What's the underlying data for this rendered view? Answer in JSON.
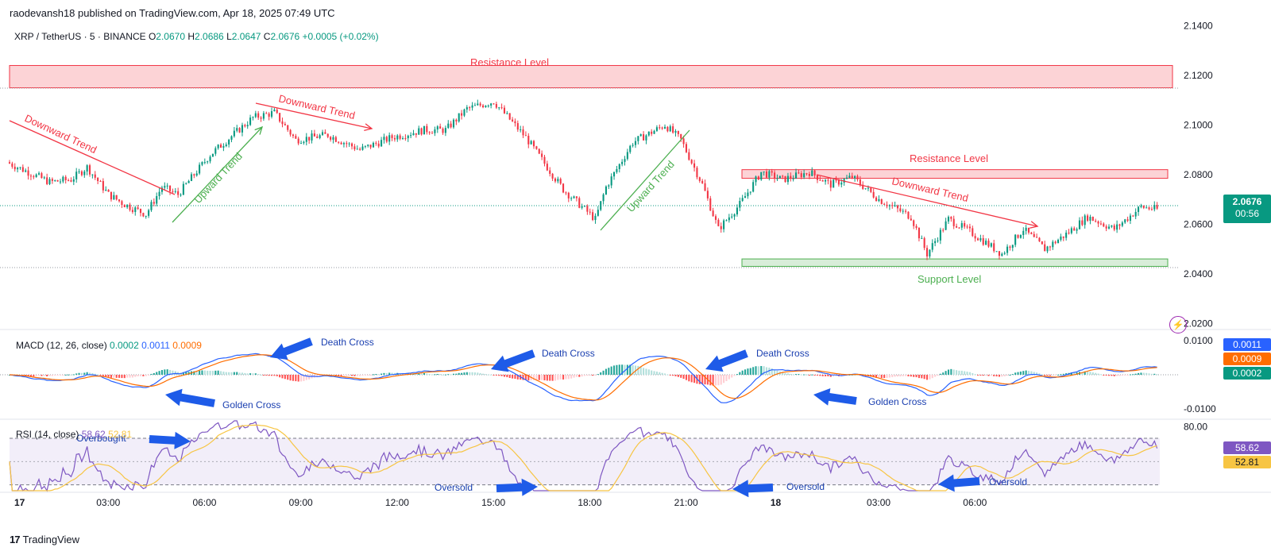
{
  "publisher": "raodevansh18 published on TradingView.com, Apr 18, 2025 07:49 UTC",
  "symbol": {
    "name": "XRP / TetherUS · 5 · BINANCE",
    "o_label": "O",
    "o": "2.0670",
    "h_label": "H",
    "h": "2.0686",
    "l_label": "L",
    "l": "2.0647",
    "c_label": "C",
    "c": "2.0676",
    "change": "+0.0005 (+0.02%)"
  },
  "last_price": {
    "value": "2.0676",
    "countdown": "00:56"
  },
  "annotations": {
    "resistance_top": "Resistance Level",
    "resistance_right": "Resistance Level",
    "support": "Support Level",
    "downward_trend": "Downward Trend",
    "upward_trend": "Upward Trend",
    "death_cross": "Death Cross",
    "golden_cross": "Golden Cross",
    "overbought": "Overbought",
    "oversold": "Oversold"
  },
  "macd": {
    "label": "MACD (12, 26, close)",
    "v1": "0.0002",
    "v2": "0.0011",
    "v3": "0.0009",
    "badge_macd": "0.0011",
    "badge_signal": "0.0009",
    "badge_hist": "0.0002"
  },
  "rsi": {
    "label": "RSI (14, close)",
    "v1": "58.62",
    "v2": "52.81",
    "badge_rsi": "58.62",
    "badge_ma": "52.81"
  },
  "logo": {
    "text": "TradingView",
    "mark": "17"
  },
  "colors": {
    "up": "#089981",
    "down": "#f23645",
    "macd": "#2962ff",
    "signal": "#ff6d00",
    "rsi": "#7e57c2",
    "rsi_ma": "#f7c543",
    "support": "#4caf50",
    "resistance": "#f23645",
    "arrow": "#1e5be8"
  },
  "chart_data": {
    "type": "candlestick",
    "x_ticks": [
      "17",
      "03:00",
      "06:00",
      "09:00",
      "12:00",
      "15:00",
      "18:00",
      "21:00",
      "18",
      "03:00",
      "06:00"
    ],
    "price_axis": {
      "ticks": [
        "2.1400",
        "2.1200",
        "2.1000",
        "2.0800",
        "2.0600",
        "2.0400",
        "2.0200"
      ],
      "range": [
        2.0185,
        2.144
      ]
    },
    "macd_axis": {
      "ticks": [
        "0.0100",
        "-0.0100"
      ],
      "range": [
        -0.0125,
        0.0125
      ]
    },
    "rsi_axis": {
      "ticks": [
        "80.00"
      ],
      "range": [
        25,
        85
      ],
      "bands": [
        70,
        30
      ]
    },
    "resistance_levels": [
      [
        2.115,
        2.124
      ],
      [
        2.0785,
        2.082
      ]
    ],
    "support_levels": [
      [
        2.043,
        2.046
      ]
    ],
    "close_path": [
      [
        0,
        2.085
      ],
      [
        8,
        2.081
      ],
      [
        16,
        2.077
      ],
      [
        24,
        2.078
      ],
      [
        30,
        2.083
      ],
      [
        38,
        2.072
      ],
      [
        44,
        2.068
      ],
      [
        52,
        2.064
      ],
      [
        58,
        2.075
      ],
      [
        64,
        2.072
      ],
      [
        76,
        2.088
      ],
      [
        92,
        2.103
      ],
      [
        100,
        2.105
      ],
      [
        108,
        2.094
      ],
      [
        120,
        2.096
      ],
      [
        132,
        2.09
      ],
      [
        144,
        2.095
      ],
      [
        156,
        2.098
      ],
      [
        164,
        2.098
      ],
      [
        172,
        2.1065
      ],
      [
        182,
        2.1095
      ],
      [
        194,
        2.095
      ],
      [
        208,
        2.074
      ],
      [
        214,
        2.068
      ],
      [
        220,
        2.062
      ],
      [
        224,
        2.075
      ],
      [
        234,
        2.093
      ],
      [
        246,
        2.1
      ],
      [
        252,
        2.094
      ],
      [
        260,
        2.076
      ],
      [
        266,
        2.058
      ],
      [
        274,
        2.068
      ],
      [
        282,
        2.081
      ],
      [
        290,
        2.078
      ],
      [
        300,
        2.081
      ],
      [
        308,
        2.076
      ],
      [
        316,
        2.079
      ],
      [
        326,
        2.07
      ],
      [
        338,
        2.063
      ],
      [
        344,
        2.048
      ],
      [
        352,
        2.062
      ],
      [
        360,
        2.057
      ],
      [
        372,
        2.048
      ],
      [
        380,
        2.058
      ],
      [
        388,
        2.05
      ],
      [
        396,
        2.056
      ],
      [
        404,
        2.063
      ],
      [
        414,
        2.058
      ],
      [
        424,
        2.067
      ],
      [
        430,
        2.066
      ]
    ],
    "volatility_tiers": [
      [
        0.0015,
        0.001,
        0.001
      ],
      [
        0.003,
        0.002,
        0.0018
      ],
      [
        0.005,
        0.003,
        0.0028
      ]
    ],
    "macd_hist_tiers": [
      [
        0.0004,
        0.0003,
        0.0006,
        0.0008,
        0.0005,
        0.0004,
        0.0003
      ]
    ],
    "macd_line_tiers": [
      [
        0.003,
        0.0045
      ],
      [
        -0.002,
        -0.0025
      ],
      [
        0.007,
        0.009
      ],
      [
        0.004,
        0.005
      ]
    ],
    "rsi_tiers": [
      [
        10,
        10,
        12,
        11,
        9,
        8
      ],
      [
        12,
        14,
        16,
        13,
        10,
        8
      ]
    ]
  }
}
